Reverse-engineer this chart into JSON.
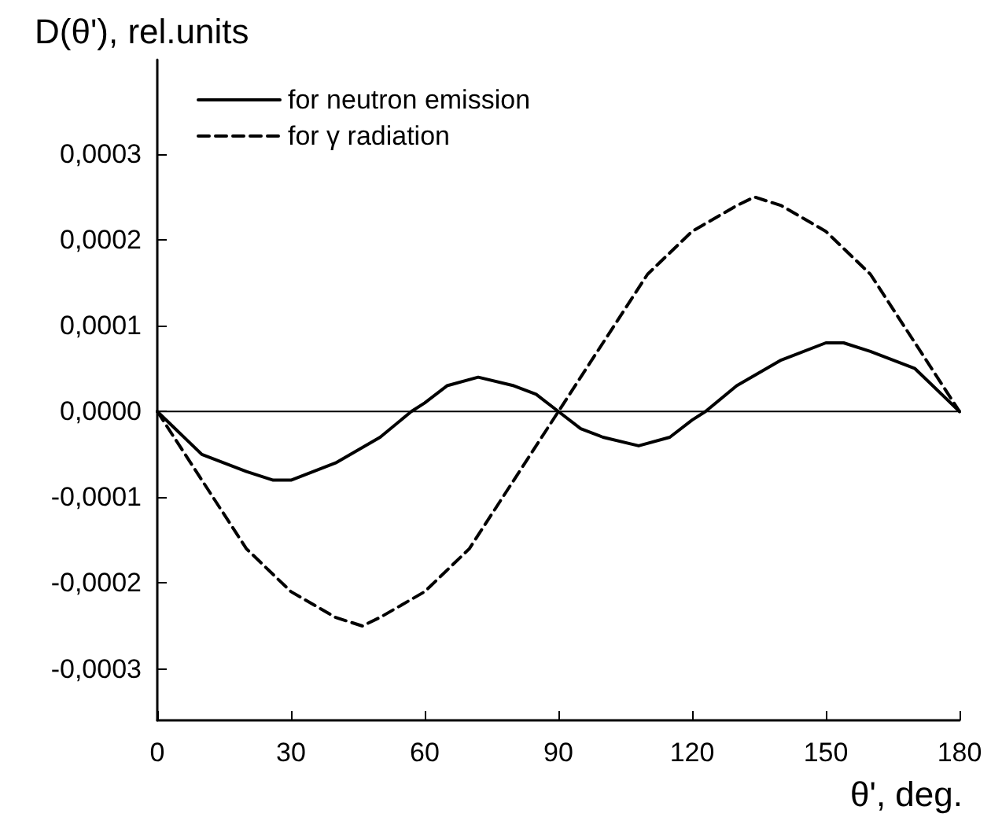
{
  "chart_data": {
    "type": "line",
    "ylabel": "D(θ'), rel.units",
    "xlabel": "θ', deg.",
    "xlim": [
      0,
      180
    ],
    "xticks": [
      0,
      30,
      60,
      90,
      120,
      150,
      180
    ],
    "ylim": [
      -0.00036,
      0.00041
    ],
    "yticks": [
      {
        "value": -0.0003,
        "label": "-0,0003"
      },
      {
        "value": -0.0002,
        "label": "-0,0002"
      },
      {
        "value": -0.0001,
        "label": "-0,0001"
      },
      {
        "value": 0,
        "label": "0,0000"
      },
      {
        "value": 0.0001,
        "label": "0,0001"
      },
      {
        "value": 0.0002,
        "label": "0,0002"
      },
      {
        "value": 0.0003,
        "label": "0,0003"
      }
    ],
    "grid": false,
    "legend": "top left",
    "marker": "none",
    "ref_lines": [
      {
        "axis": "y",
        "value": 0,
        "color": "#000000"
      }
    ],
    "series": [
      {
        "name": "for neutron emission",
        "color": "#000000",
        "line_style": "solid",
        "x": [
          0,
          10,
          20,
          26,
          30,
          40,
          50,
          57,
          60,
          65,
          72,
          80,
          85,
          90,
          95,
          100,
          108,
          115,
          120,
          123,
          130,
          140,
          150,
          154,
          160,
          170,
          180
        ],
        "values": [
          0,
          -5e-05,
          -7e-05,
          -8e-05,
          -8e-05,
          -6e-05,
          -3e-05,
          0,
          1e-05,
          3e-05,
          4e-05,
          3e-05,
          2e-05,
          0,
          -2e-05,
          -3e-05,
          -4e-05,
          -3e-05,
          -1e-05,
          0,
          3e-05,
          6e-05,
          8e-05,
          8e-05,
          7e-05,
          5e-05,
          0
        ]
      },
      {
        "name": "for γ radiation",
        "color": "#000000",
        "line_style": "dashed",
        "x": [
          0,
          10,
          20,
          30,
          40,
          46,
          50,
          60,
          70,
          80,
          90,
          100,
          110,
          120,
          130,
          134,
          140,
          150,
          160,
          170,
          180
        ],
        "values": [
          0,
          -8e-05,
          -0.00016,
          -0.00021,
          -0.00024,
          -0.00025,
          -0.00024,
          -0.00021,
          -0.00016,
          -8e-05,
          0,
          8e-05,
          0.00016,
          0.00021,
          0.00024,
          0.00025,
          0.00024,
          0.00021,
          0.00016,
          8e-05,
          0
        ]
      }
    ]
  }
}
